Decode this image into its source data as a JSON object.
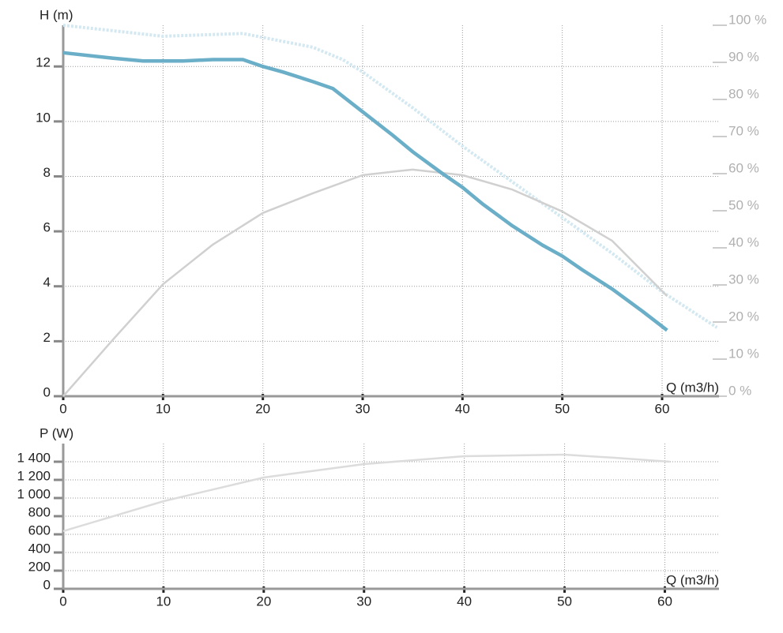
{
  "chart_data": [
    {
      "type": "line",
      "y_label": "H (m)",
      "x_label": "Q (m3/h)",
      "xlim": [
        0,
        65.7
      ],
      "xticks": [
        0,
        10,
        20,
        30,
        40,
        50,
        60
      ],
      "ylim": [
        0,
        13.5
      ],
      "yticks": [
        0,
        2,
        4,
        6,
        8,
        10,
        12
      ],
      "y2lim": [
        0,
        100
      ],
      "y2ticks": [
        {
          "value": 0,
          "label": "0 %"
        },
        {
          "value": 10,
          "label": "10 %"
        },
        {
          "value": 20,
          "label": "20 %"
        },
        {
          "value": 30,
          "label": "30 %"
        },
        {
          "value": 40,
          "label": "40 %"
        },
        {
          "value": 50,
          "label": "50 %"
        },
        {
          "value": 60,
          "label": "60 %"
        },
        {
          "value": 70,
          "label": "70 %"
        },
        {
          "value": 80,
          "label": "80 %"
        },
        {
          "value": 90,
          "label": "90 %"
        },
        {
          "value": 100,
          "label": "100 %"
        }
      ],
      "grid": true,
      "series": [
        {
          "color": "#d3e8f1",
          "line_style": "dotted",
          "x": [
            0,
            10,
            18,
            25,
            28,
            30,
            35,
            40,
            45,
            50,
            55,
            60,
            65.5
          ],
          "values": [
            13.5,
            13.1,
            13.2,
            12.7,
            12.25,
            11.8,
            10.5,
            9.1,
            7.8,
            6.5,
            5.2,
            3.8,
            2.5
          ]
        },
        {
          "color": "#d0d0d0",
          "axis": "y2",
          "line_style": "solid",
          "x": [
            0,
            5,
            10,
            15,
            20,
            25,
            30,
            35,
            40,
            45,
            50,
            55,
            60.5
          ],
          "values": [
            0,
            15.3,
            30.2,
            40.9,
            49.4,
            54.7,
            59.6,
            61.1,
            59.6,
            55.7,
            49.8,
            41.9,
            27
          ]
        },
        {
          "color": "#6aaec8",
          "line_style": "solid",
          "x": [
            0,
            5,
            8,
            12,
            15,
            18,
            20,
            22,
            25,
            27,
            30,
            33,
            35,
            38,
            40,
            42,
            45,
            48,
            50,
            52,
            55,
            58,
            60.5
          ],
          "values": [
            12.5,
            12.3,
            12.2,
            12.2,
            12.25,
            12.25,
            12.0,
            11.8,
            11.45,
            11.2,
            10.35,
            9.5,
            8.9,
            8.1,
            7.6,
            7.0,
            6.2,
            5.5,
            5.1,
            4.6,
            3.9,
            3.1,
            2.4
          ]
        }
      ]
    },
    {
      "type": "line",
      "y_label": "P (W)",
      "x_label": "Q (m3/h)",
      "xlim": [
        0,
        65.4
      ],
      "xticks": [
        0,
        10,
        20,
        30,
        40,
        50,
        60
      ],
      "ylim": [
        0,
        1600
      ],
      "yticks": [
        0,
        200,
        400,
        600,
        800,
        {
          "value": 1000,
          "label": "1 000"
        },
        {
          "value": 1200,
          "label": "1 200"
        },
        {
          "value": 1400,
          "label": "1 400"
        }
      ],
      "grid": true,
      "series": [
        {
          "color": "#dcdcdc",
          "line_style": "solid",
          "x": [
            0,
            10,
            20,
            30,
            40,
            50,
            55,
            60.5
          ],
          "values": [
            635,
            965,
            1226,
            1374,
            1461,
            1478,
            1443,
            1400
          ]
        }
      ]
    }
  ]
}
